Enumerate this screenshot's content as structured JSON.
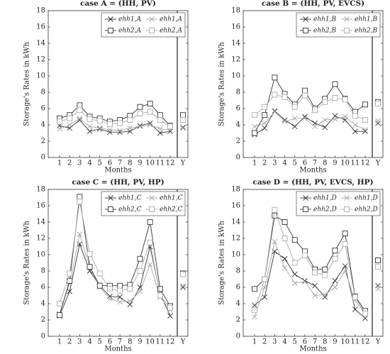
{
  "chart_data": [
    {
      "type": "line",
      "title": "case A = (HH, PV)",
      "xlabel": "Months",
      "ylabel": "Storage's Rates in kWh",
      "categories": [
        "1",
        "2",
        "3",
        "4",
        "5",
        "6",
        "7",
        "8",
        "9",
        "10",
        "11",
        "12"
      ],
      "annual_label": "Y",
      "ylim": [
        0,
        18
      ],
      "yticks": [
        0,
        2,
        4,
        6,
        8,
        10,
        12,
        14,
        16,
        18
      ],
      "series": [
        {
          "name": "ehh1,A",
          "color": "#333333",
          "marker": "x",
          "values": [
            3.9,
            3.6,
            4.6,
            3.2,
            3.5,
            3.1,
            3.1,
            3.2,
            3.9,
            4.2,
            3.0,
            3.2
          ],
          "annual": 3.7
        },
        {
          "name": "ehh1,A",
          "color": "#aaaaaa",
          "marker": "x",
          "values": [
            3.5,
            4.0,
            4.8,
            3.8,
            3.6,
            3.4,
            3.3,
            3.6,
            3.8,
            4.0,
            3.5,
            3.4
          ],
          "annual": 3.6
        },
        {
          "name": "ehh2,A",
          "color": "#333333",
          "marker": "square",
          "values": [
            4.8,
            5.2,
            6.4,
            5.0,
            4.8,
            4.4,
            4.6,
            5.1,
            6.2,
            6.6,
            5.2,
            3.9
          ],
          "annual": 5.2
        },
        {
          "name": "ehh2,A",
          "color": "#aaaaaa",
          "marker": "square",
          "values": [
            4.4,
            4.8,
            5.8,
            4.7,
            4.5,
            4.1,
            4.2,
            4.6,
            5.4,
            5.6,
            4.6,
            3.8
          ],
          "annual": 4.6
        }
      ]
    },
    {
      "type": "line",
      "title": "case B = (HH, PV, EVCS)",
      "xlabel": "Months",
      "ylabel": "Storage's Rates in kWh",
      "categories": [
        "1",
        "2",
        "3",
        "4",
        "5",
        "6",
        "7",
        "8",
        "9",
        "10",
        "11",
        "12"
      ],
      "annual_label": "Y",
      "ylim": [
        0,
        18
      ],
      "yticks": [
        0,
        2,
        4,
        6,
        8,
        10,
        12,
        14,
        16,
        18
      ],
      "series": [
        {
          "name": "ehh1,B",
          "color": "#333333",
          "marker": "x",
          "values": [
            2.8,
            3.6,
            5.7,
            4.6,
            3.8,
            5.0,
            4.2,
            3.7,
            5.1,
            4.6,
            3.2,
            3.2
          ],
          "annual": 4.2
        },
        {
          "name": "ehh1,B",
          "color": "#aaaaaa",
          "marker": "x",
          "values": [
            3.8,
            4.2,
            5.6,
            4.4,
            4.8,
            4.8,
            3.8,
            4.6,
            4.7,
            5.0,
            4.0,
            3.4
          ],
          "annual": 4.5
        },
        {
          "name": "ehh2,B",
          "color": "#333333",
          "marker": "square",
          "values": [
            3.0,
            5.2,
            9.8,
            7.8,
            6.5,
            8.2,
            6.0,
            7.2,
            9.0,
            7.2,
            5.6,
            6.5
          ],
          "annual": 6.8
        },
        {
          "name": "ehh2,B",
          "color": "#aaaaaa",
          "marker": "square",
          "values": [
            5.2,
            6.2,
            7.7,
            7.4,
            6.2,
            7.6,
            5.8,
            6.8,
            7.3,
            7.1,
            5.1,
            4.6
          ],
          "annual": 6.6
        }
      ]
    },
    {
      "type": "line",
      "title": "case C = (HH, PV, HP)",
      "xlabel": "Months",
      "ylabel": "Storage's Rates in kWh",
      "categories": [
        "1",
        "2",
        "3",
        "4",
        "5",
        "6",
        "7",
        "8",
        "9",
        "10",
        "11",
        "12"
      ],
      "annual_label": "Y",
      "ylim": [
        0,
        18
      ],
      "yticks": [
        0,
        2,
        4,
        6,
        8,
        10,
        12,
        14,
        16,
        18
      ],
      "series": [
        {
          "name": "ehh1,C",
          "color": "#333333",
          "marker": "x",
          "values": [
            2.5,
            5.5,
            11.3,
            8.0,
            6.2,
            4.9,
            4.8,
            3.9,
            6.0,
            11.0,
            5.2,
            2.5
          ],
          "annual": 6.0
        },
        {
          "name": "ehh1,C",
          "color": "#aaaaaa",
          "marker": "x",
          "values": [
            2.8,
            6.5,
            12.5,
            8.5,
            6.0,
            4.6,
            4.2,
            4.3,
            5.5,
            8.8,
            4.8,
            3.2
          ],
          "annual": 6.2
        },
        {
          "name": "ehh2,C",
          "color": "#333333",
          "marker": "square",
          "values": [
            2.6,
            6.8,
            17.1,
            8.5,
            6.2,
            6.2,
            6.2,
            6.3,
            9.5,
            14.0,
            5.8,
            3.7
          ],
          "annual": 7.7
        },
        {
          "name": "ehh2,C",
          "color": "#aaaaaa",
          "marker": "square",
          "values": [
            4.0,
            7.7,
            16.5,
            10.1,
            7.7,
            5.8,
            5.6,
            5.8,
            8.0,
            11.5,
            5.0,
            3.5
          ],
          "annual": 7.6
        }
      ]
    },
    {
      "type": "line",
      "title": "case D = (HH, PV, EVCS, HP)",
      "xlabel": "Months",
      "ylabel": "Storage's Rates in kWh",
      "categories": [
        "1",
        "2",
        "3",
        "4",
        "5",
        "6",
        "7",
        "8",
        "9",
        "10",
        "11",
        "12"
      ],
      "annual_label": "Y",
      "ylim": [
        0,
        18
      ],
      "yticks": [
        0,
        2,
        4,
        6,
        8,
        10,
        12,
        14,
        16,
        18
      ],
      "series": [
        {
          "name": "ehh1,D",
          "color": "#333333",
          "marker": "x",
          "values": [
            3.8,
            4.8,
            10.4,
            9.5,
            7.6,
            6.8,
            6.2,
            4.8,
            6.8,
            8.6,
            3.3,
            2.2
          ],
          "annual": 6.2
        },
        {
          "name": "ehh1,D",
          "color": "#aaaaaa",
          "marker": "x",
          "values": [
            2.4,
            6.0,
            11.6,
            8.4,
            6.5,
            6.7,
            5.0,
            5.1,
            6.0,
            8.0,
            4.4,
            2.8
          ],
          "annual": 5.8
        },
        {
          "name": "ehh2,D",
          "color": "#333333",
          "marker": "square",
          "values": [
            5.8,
            7.0,
            14.8,
            14.0,
            11.8,
            10.4,
            8.2,
            8.2,
            10.5,
            12.6,
            4.9,
            3.1
          ],
          "annual": 9.3
        },
        {
          "name": "ehh2,D",
          "color": "#aaaaaa",
          "marker": "square",
          "values": [
            3.2,
            7.0,
            15.5,
            12.0,
            9.0,
            9.9,
            7.8,
            7.5,
            9.5,
            11.3,
            4.8,
            2.8
          ],
          "annual": 8.5
        }
      ]
    }
  ]
}
